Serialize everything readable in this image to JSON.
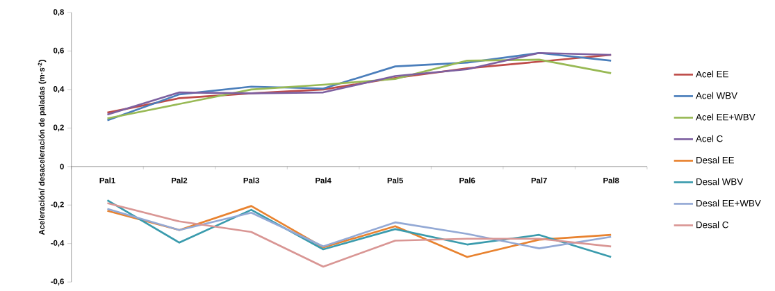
{
  "chart_data": {
    "type": "line",
    "ylabel": "Aceleración/ desaceleración de paladas (m·s$^{-2}$)",
    "categories": [
      "Pal1",
      "Pal2",
      "Pal3",
      "Pal4",
      "Pal5",
      "Pal6",
      "Pal7",
      "Pal8"
    ],
    "series": [
      {
        "name": "Acel EE",
        "color": "#be4b48",
        "values": [
          0.28,
          0.355,
          0.38,
          0.4,
          0.46,
          0.51,
          0.545,
          0.58
        ]
      },
      {
        "name": "Acel WBV",
        "color": "#4a7ebb",
        "values": [
          0.24,
          0.375,
          0.415,
          0.405,
          0.52,
          0.54,
          0.59,
          0.55
        ]
      },
      {
        "name": "Acel EE+WBV",
        "color": "#98b954",
        "values": [
          0.25,
          0.325,
          0.4,
          0.425,
          0.455,
          0.55,
          0.555,
          0.485
        ]
      },
      {
        "name": "Acel C",
        "color": "#7d60a0",
        "values": [
          0.27,
          0.385,
          0.38,
          0.385,
          0.47,
          0.505,
          0.59,
          0.58
        ]
      },
      {
        "name": "Desal EE",
        "color": "#e8822f",
        "values": [
          -0.23,
          -0.33,
          -0.205,
          -0.42,
          -0.31,
          -0.47,
          -0.38,
          -0.355
        ]
      },
      {
        "name": "Desal WBV",
        "color": "#3a9bad",
        "values": [
          -0.175,
          -0.395,
          -0.225,
          -0.43,
          -0.325,
          -0.405,
          -0.355,
          -0.47
        ]
      },
      {
        "name": "Desal EE+WBV",
        "color": "#93a9d5",
        "values": [
          -0.22,
          -0.33,
          -0.24,
          -0.415,
          -0.29,
          -0.35,
          -0.425,
          -0.365
        ]
      },
      {
        "name": "Desal C",
        "color": "#d99694",
        "values": [
          -0.19,
          -0.285,
          -0.34,
          -0.52,
          -0.385,
          -0.375,
          -0.375,
          -0.415
        ]
      }
    ],
    "ylim": [
      -0.6,
      0.8
    ],
    "yticks": [
      {
        "value": -0.6,
        "label": "-0,6"
      },
      {
        "value": -0.4,
        "label": "-0,4"
      },
      {
        "value": -0.2,
        "label": "-0,2"
      },
      0,
      {
        "value": 0.2,
        "label": "0,2"
      },
      {
        "value": 0.4,
        "label": "0,4"
      },
      {
        "value": 0.6,
        "label": "0,6"
      },
      {
        "value": 0.8,
        "label": "0,8"
      }
    ],
    "legend": "right",
    "grid": false,
    "marker": "none",
    "line_style": "solid"
  }
}
